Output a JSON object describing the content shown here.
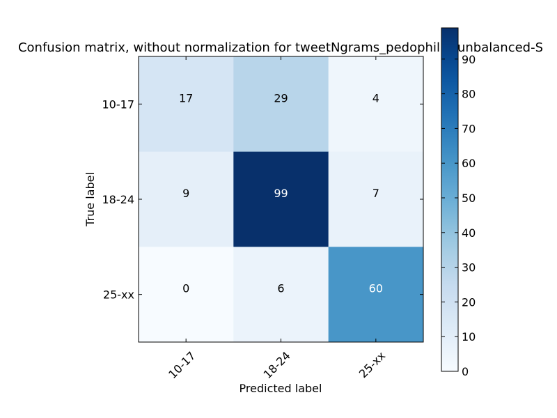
{
  "chart_data": {
    "type": "heatmap",
    "title": "Confusion matrix, without normalization for tweetNgrams_pedophilia_unbalanced-S",
    "xlabel": "Predicted label",
    "ylabel": "True label",
    "x_categories": [
      "10-17",
      "18-24",
      "25-xx"
    ],
    "y_categories": [
      "10-17",
      "18-24",
      "25-xx"
    ],
    "values": [
      [
        17,
        29,
        4
      ],
      [
        9,
        99,
        7
      ],
      [
        0,
        6,
        60
      ]
    ],
    "colormap": "Blues",
    "colorbar": {
      "range": [
        0,
        99
      ],
      "ticks": [
        0,
        10,
        20,
        30,
        40,
        50,
        60,
        70,
        80,
        90
      ]
    },
    "x_tick_rotation_deg": 45,
    "grid": false
  }
}
